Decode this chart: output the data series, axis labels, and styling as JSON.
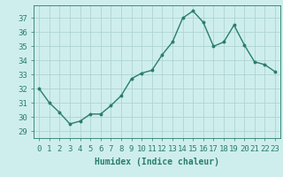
{
  "x": [
    0,
    1,
    2,
    3,
    4,
    5,
    6,
    7,
    8,
    9,
    10,
    11,
    12,
    13,
    14,
    15,
    16,
    17,
    18,
    19,
    20,
    21,
    22,
    23
  ],
  "y": [
    32,
    31,
    30.3,
    29.5,
    29.7,
    30.2,
    30.2,
    30.8,
    31.5,
    32.7,
    33.1,
    33.3,
    34.4,
    35.3,
    37.0,
    37.5,
    36.7,
    35.0,
    35.3,
    36.5,
    35.1,
    33.9,
    33.7,
    33.2
  ],
  "line_color": "#2a7d6e",
  "marker": "o",
  "marker_size": 1.8,
  "line_width": 1.0,
  "bg_color": "#ceeeed",
  "grid_color": "#aed4d2",
  "tick_color": "#2a7d6e",
  "xlabel": "Humidex (Indice chaleur)",
  "ylabel_ticks": [
    29,
    30,
    31,
    32,
    33,
    34,
    35,
    36,
    37
  ],
  "ylim": [
    28.5,
    37.9
  ],
  "xlim": [
    -0.5,
    23.5
  ],
  "xlabel_fontsize": 7,
  "tick_fontsize": 6.5
}
